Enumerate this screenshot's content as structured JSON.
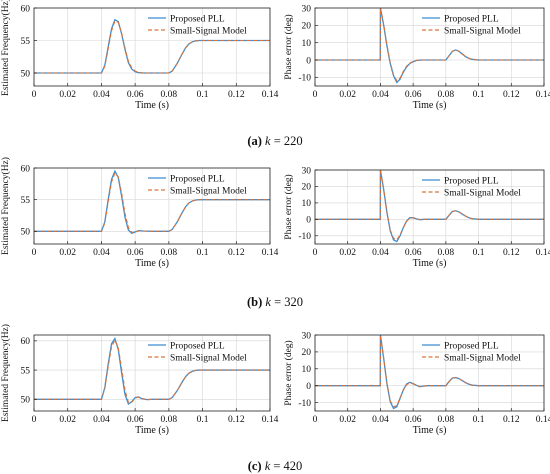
{
  "figure": {
    "captions": [
      {
        "letter": "(a)",
        "var": "k",
        "eq": " = 220"
      },
      {
        "letter": "(b)",
        "var": "k",
        "eq": " = 320"
      },
      {
        "letter": "(c)",
        "var": "k",
        "eq": " = 420"
      }
    ]
  },
  "colors": {
    "proposed": "#3b8ed2",
    "model": "#d9733a",
    "axis": "#222222",
    "grid": "#d6d6d6"
  },
  "chart_data": [
    {
      "id": "a-freq",
      "type": "line",
      "xlabel": "Time (s)",
      "ylabel": "Estimated Frequency(Hz)",
      "xlim": [
        0,
        0.14
      ],
      "ylim": [
        48,
        60
      ],
      "xticks": [
        0,
        0.02,
        0.04,
        0.06,
        0.08,
        0.1,
        0.12,
        0.14
      ],
      "xticklabels": [
        "0",
        "0.02",
        "0.04",
        "0.06",
        "0.08",
        "0.1",
        "0.12",
        "0.14"
      ],
      "yticks": [
        50,
        55,
        60
      ],
      "yticklabels": [
        "50",
        "55",
        "60"
      ],
      "grid": true,
      "legend": "top-right",
      "series": [
        {
          "name": "Proposed PLL",
          "style": "solid",
          "x": [
            0,
            0.04,
            0.042,
            0.044,
            0.046,
            0.048,
            0.05,
            0.052,
            0.054,
            0.056,
            0.058,
            0.06,
            0.062,
            0.065,
            0.07,
            0.08,
            0.082,
            0.085,
            0.088,
            0.09,
            0.092,
            0.094,
            0.096,
            0.098,
            0.1,
            0.104,
            0.14
          ],
          "y": [
            50,
            50,
            51.2,
            54,
            56.8,
            58.2,
            57.9,
            56,
            53.6,
            51.6,
            50.6,
            50.2,
            50.05,
            50,
            50,
            50,
            50.3,
            51.5,
            53,
            53.9,
            54.5,
            54.8,
            54.95,
            55,
            55,
            55,
            55
          ]
        },
        {
          "name": "Small-Signal Model",
          "style": "dashed",
          "x": [
            0,
            0.04,
            0.042,
            0.044,
            0.046,
            0.048,
            0.05,
            0.052,
            0.054,
            0.056,
            0.058,
            0.06,
            0.062,
            0.065,
            0.07,
            0.08,
            0.082,
            0.085,
            0.088,
            0.09,
            0.092,
            0.094,
            0.096,
            0.098,
            0.1,
            0.104,
            0.14
          ],
          "y": [
            50,
            50,
            51,
            53.7,
            56.5,
            58,
            57.8,
            56.1,
            53.8,
            51.8,
            50.8,
            50.3,
            50.1,
            50,
            50,
            50,
            50.3,
            51.5,
            53,
            53.9,
            54.5,
            54.8,
            54.95,
            55,
            55,
            55,
            55
          ]
        }
      ]
    },
    {
      "id": "a-phase",
      "type": "line",
      "xlabel": "Time (s)",
      "ylabel": "Phase error (deg)",
      "xlim": [
        0,
        0.14
      ],
      "ylim": [
        -15,
        30
      ],
      "xticks": [
        0,
        0.02,
        0.04,
        0.06,
        0.08,
        0.1,
        0.12,
        0.14
      ],
      "xticklabels": [
        "0",
        "0.02",
        "0.04",
        "0.06",
        "0.08",
        "0.1",
        "0.12",
        "0.14"
      ],
      "yticks": [
        -10,
        0,
        10,
        20,
        30
      ],
      "yticklabels": [
        "-10",
        "0",
        "10",
        "20",
        "30"
      ],
      "grid": true,
      "legend": "top-right",
      "series": [
        {
          "name": "Proposed PLL",
          "style": "solid",
          "x": [
            0,
            0.0399,
            0.04,
            0.042,
            0.044,
            0.046,
            0.048,
            0.05,
            0.052,
            0.054,
            0.056,
            0.058,
            0.06,
            0.062,
            0.065,
            0.08,
            0.082,
            0.084,
            0.086,
            0.088,
            0.09,
            0.092,
            0.094,
            0.096,
            0.1,
            0.14
          ],
          "y": [
            0,
            0,
            30,
            20,
            8,
            -2,
            -9,
            -13,
            -11,
            -7,
            -4,
            -2,
            -1,
            -0.3,
            0,
            0,
            2.5,
            5,
            5.8,
            5,
            3.5,
            2,
            1,
            0.4,
            0,
            0
          ]
        },
        {
          "name": "Small-Signal Model",
          "style": "dashed",
          "x": [
            0,
            0.0399,
            0.04,
            0.042,
            0.044,
            0.046,
            0.048,
            0.05,
            0.052,
            0.054,
            0.056,
            0.058,
            0.06,
            0.062,
            0.065,
            0.08,
            0.082,
            0.084,
            0.086,
            0.088,
            0.09,
            0.092,
            0.094,
            0.096,
            0.1,
            0.14
          ],
          "y": [
            0,
            0,
            30,
            20.5,
            8.5,
            -1.5,
            -8.5,
            -12,
            -10.5,
            -6.5,
            -3.5,
            -1.8,
            -0.8,
            -0.2,
            0,
            0,
            2.5,
            5,
            5.8,
            5,
            3.5,
            2,
            1,
            0.4,
            0,
            0
          ]
        }
      ]
    },
    {
      "id": "b-freq",
      "type": "line",
      "xlabel": "Time (s)",
      "ylabel": "Estimated Frequency(Hz)",
      "xlim": [
        0,
        0.14
      ],
      "ylim": [
        48,
        60
      ],
      "xticks": [
        0,
        0.02,
        0.04,
        0.06,
        0.08,
        0.1,
        0.12,
        0.14
      ],
      "xticklabels": [
        "0",
        "0.02",
        "0.04",
        "0.06",
        "0.08",
        "0.1",
        "0.12",
        "0.14"
      ],
      "yticks": [
        50,
        55,
        60
      ],
      "yticklabels": [
        "50",
        "55",
        "60"
      ],
      "grid": true,
      "legend": "top-right",
      "series": [
        {
          "name": "Proposed PLL",
          "style": "solid",
          "x": [
            0,
            0.04,
            0.042,
            0.044,
            0.046,
            0.048,
            0.05,
            0.052,
            0.054,
            0.056,
            0.058,
            0.06,
            0.062,
            0.065,
            0.07,
            0.08,
            0.082,
            0.085,
            0.088,
            0.09,
            0.092,
            0.094,
            0.096,
            0.098,
            0.1,
            0.104,
            0.14
          ],
          "y": [
            50,
            50,
            51.5,
            55,
            58.2,
            59.5,
            58.5,
            55.5,
            52.2,
            50.2,
            49.7,
            49.9,
            50.1,
            50.05,
            50,
            50,
            50.3,
            51.5,
            53,
            53.9,
            54.5,
            54.8,
            54.95,
            55,
            55,
            55,
            55
          ]
        },
        {
          "name": "Small-Signal Model",
          "style": "dashed",
          "x": [
            0,
            0.04,
            0.042,
            0.044,
            0.046,
            0.048,
            0.05,
            0.052,
            0.054,
            0.056,
            0.058,
            0.06,
            0.062,
            0.065,
            0.07,
            0.08,
            0.082,
            0.085,
            0.088,
            0.09,
            0.092,
            0.094,
            0.096,
            0.098,
            0.1,
            0.104,
            0.14
          ],
          "y": [
            50,
            50,
            51.3,
            54.6,
            57.8,
            59.2,
            58.6,
            56,
            52.8,
            50.6,
            49.8,
            49.9,
            50.05,
            50.05,
            50,
            50,
            50.3,
            51.5,
            53,
            53.9,
            54.5,
            54.8,
            54.95,
            55,
            55,
            55,
            55
          ]
        }
      ]
    },
    {
      "id": "b-phase",
      "type": "line",
      "xlabel": "Time (s)",
      "ylabel": "Phase error (deg)",
      "xlim": [
        0,
        0.14
      ],
      "ylim": [
        -15,
        30
      ],
      "xticks": [
        0,
        0.02,
        0.04,
        0.06,
        0.08,
        0.1,
        0.12,
        0.14
      ],
      "xticklabels": [
        "0",
        "0.02",
        "0.04",
        "0.06",
        "0.08",
        "0.1",
        "0.12",
        "0.14"
      ],
      "yticks": [
        -10,
        0,
        10,
        20,
        30
      ],
      "yticklabels": [
        "-10",
        "0",
        "10",
        "20",
        "30"
      ],
      "grid": true,
      "legend": "top-right",
      "series": [
        {
          "name": "Proposed PLL",
          "style": "solid",
          "x": [
            0,
            0.0399,
            0.04,
            0.042,
            0.044,
            0.046,
            0.048,
            0.05,
            0.052,
            0.054,
            0.056,
            0.058,
            0.06,
            0.062,
            0.064,
            0.067,
            0.08,
            0.082,
            0.084,
            0.086,
            0.088,
            0.09,
            0.092,
            0.094,
            0.096,
            0.1,
            0.14
          ],
          "y": [
            0,
            0,
            30,
            18,
            4,
            -7,
            -12.5,
            -13.5,
            -10,
            -5,
            -1,
            1,
            1,
            0.3,
            -0.2,
            0,
            0,
            2.5,
            4.8,
            5.2,
            4.5,
            3.2,
            2,
            1,
            0.4,
            0,
            0
          ]
        },
        {
          "name": "Small-Signal Model",
          "style": "dashed",
          "x": [
            0,
            0.0399,
            0.04,
            0.042,
            0.044,
            0.046,
            0.048,
            0.05,
            0.052,
            0.054,
            0.056,
            0.058,
            0.06,
            0.062,
            0.064,
            0.067,
            0.08,
            0.082,
            0.084,
            0.086,
            0.088,
            0.09,
            0.092,
            0.094,
            0.096,
            0.1,
            0.14
          ],
          "y": [
            0,
            0,
            30,
            18.5,
            4.5,
            -6.5,
            -11.5,
            -12.5,
            -9.5,
            -5,
            -1.2,
            0.8,
            0.9,
            0.3,
            -0.1,
            0,
            0,
            2.5,
            4.8,
            5.2,
            4.5,
            3.2,
            2,
            1,
            0.4,
            0,
            0
          ]
        }
      ]
    },
    {
      "id": "c-freq",
      "type": "line",
      "xlabel": "Time (s)",
      "ylabel": "Estimated Frequency(Hz)",
      "xlim": [
        0,
        0.14
      ],
      "ylim": [
        48,
        61
      ],
      "xticks": [
        0,
        0.02,
        0.04,
        0.06,
        0.08,
        0.1,
        0.12,
        0.14
      ],
      "xticklabels": [
        "0",
        "0.02",
        "0.04",
        "0.06",
        "0.08",
        "0.1",
        "0.12",
        "0.14"
      ],
      "yticks": [
        50,
        55,
        60
      ],
      "yticklabels": [
        "50",
        "55",
        "60"
      ],
      "grid": true,
      "legend": "top-right",
      "series": [
        {
          "name": "Proposed PLL",
          "style": "solid",
          "x": [
            0,
            0.04,
            0.042,
            0.044,
            0.046,
            0.048,
            0.05,
            0.052,
            0.054,
            0.056,
            0.058,
            0.06,
            0.062,
            0.064,
            0.067,
            0.07,
            0.08,
            0.082,
            0.085,
            0.088,
            0.09,
            0.092,
            0.094,
            0.096,
            0.098,
            0.1,
            0.104,
            0.14
          ],
          "y": [
            50,
            50,
            52,
            56,
            59.5,
            60.4,
            58.5,
            54.5,
            50.8,
            49.2,
            49.6,
            50.3,
            50.4,
            50.1,
            49.95,
            50,
            50,
            50.3,
            51.5,
            53,
            53.9,
            54.5,
            54.8,
            54.95,
            55,
            55,
            55,
            55
          ]
        },
        {
          "name": "Small-Signal Model",
          "style": "dashed",
          "x": [
            0,
            0.04,
            0.042,
            0.044,
            0.046,
            0.048,
            0.05,
            0.052,
            0.054,
            0.056,
            0.058,
            0.06,
            0.062,
            0.064,
            0.067,
            0.07,
            0.08,
            0.082,
            0.085,
            0.088,
            0.09,
            0.092,
            0.094,
            0.096,
            0.098,
            0.1,
            0.104,
            0.14
          ],
          "y": [
            50,
            50,
            51.8,
            55.6,
            59,
            60.1,
            58.8,
            55.2,
            51.5,
            49.5,
            49.5,
            50.2,
            50.4,
            50.15,
            49.95,
            50,
            50,
            50.3,
            51.5,
            53,
            53.9,
            54.5,
            54.8,
            54.95,
            55,
            55,
            55,
            55
          ]
        }
      ]
    },
    {
      "id": "c-phase",
      "type": "line",
      "xlabel": "Time (s)",
      "ylabel": "Phase error (deg)",
      "xlim": [
        0,
        0.14
      ],
      "ylim": [
        -15,
        30
      ],
      "xticks": [
        0,
        0.02,
        0.04,
        0.06,
        0.08,
        0.1,
        0.12,
        0.14
      ],
      "xticklabels": [
        "0",
        "0.02",
        "0.04",
        "0.06",
        "0.08",
        "0.1",
        "0.12",
        "0.14"
      ],
      "yticks": [
        -10,
        0,
        10,
        20,
        30
      ],
      "yticklabels": [
        "-10",
        "0",
        "10",
        "20",
        "30"
      ],
      "grid": true,
      "legend": "top-right",
      "series": [
        {
          "name": "Proposed PLL",
          "style": "solid",
          "x": [
            0,
            0.0399,
            0.04,
            0.042,
            0.044,
            0.046,
            0.048,
            0.05,
            0.052,
            0.054,
            0.056,
            0.058,
            0.06,
            0.062,
            0.064,
            0.066,
            0.069,
            0.08,
            0.082,
            0.084,
            0.086,
            0.088,
            0.09,
            0.092,
            0.094,
            0.096,
            0.1,
            0.14
          ],
          "y": [
            0,
            0,
            30,
            16,
            1,
            -9.5,
            -13.5,
            -12.5,
            -7.5,
            -2.5,
            1,
            2,
            1.2,
            0.2,
            -0.6,
            -0.3,
            0,
            0,
            2.5,
            4.5,
            4.8,
            4.2,
            3,
            1.8,
            0.9,
            0.3,
            0,
            0
          ]
        },
        {
          "name": "Small-Signal Model",
          "style": "dashed",
          "x": [
            0,
            0.0399,
            0.04,
            0.042,
            0.044,
            0.046,
            0.048,
            0.05,
            0.052,
            0.054,
            0.056,
            0.058,
            0.06,
            0.062,
            0.064,
            0.066,
            0.069,
            0.08,
            0.082,
            0.084,
            0.086,
            0.088,
            0.09,
            0.092,
            0.094,
            0.096,
            0.1,
            0.14
          ],
          "y": [
            0,
            0,
            30,
            16.5,
            1.5,
            -9,
            -12.5,
            -11.8,
            -7.2,
            -2.6,
            0.6,
            1.6,
            1.1,
            0.3,
            -0.4,
            -0.2,
            0,
            0,
            2.5,
            4.5,
            4.8,
            4.2,
            3,
            1.8,
            0.9,
            0.3,
            0,
            0
          ]
        }
      ]
    }
  ]
}
